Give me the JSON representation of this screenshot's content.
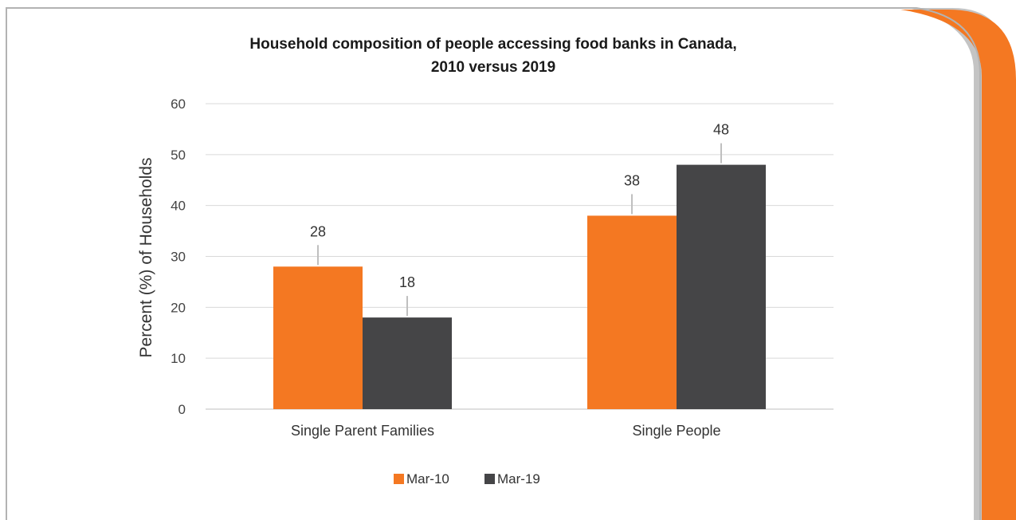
{
  "chart_data": {
    "type": "bar",
    "title": "Household composition of people accessing food banks in Canada,",
    "subtitle": "2010 versus 2019",
    "ylabel": "Percent (%) of Households",
    "xlabel": "",
    "ylim": [
      0,
      60
    ],
    "yticks": [
      0,
      10,
      20,
      30,
      40,
      50,
      60
    ],
    "grid": true,
    "legend_position": "bottom",
    "categories": [
      "Single Parent Families",
      "Single People"
    ],
    "series": [
      {
        "name": "Mar-10",
        "values": [
          28,
          38
        ],
        "color": "#f47822"
      },
      {
        "name": "Mar-19",
        "values": [
          18,
          48
        ],
        "color": "#454547"
      }
    ]
  },
  "frame": {
    "border_color": "#b3b3b3",
    "accent_color": "#f47822",
    "shadow_color": "#bdbdbd"
  }
}
